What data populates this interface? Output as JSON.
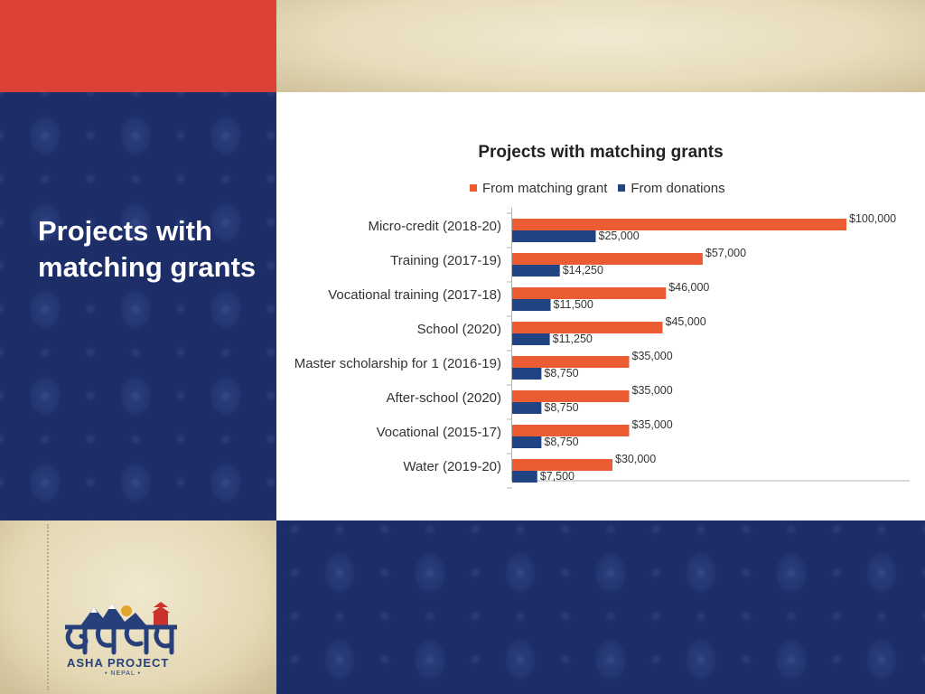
{
  "slide": {
    "title": "Projects with matching grants"
  },
  "logo": {
    "text": "ASHA PROJECT",
    "subtext": "• NEPAL •"
  },
  "colors": {
    "matching": "#ec5c33",
    "donations": "#1f4383",
    "red_block": "#dc4138",
    "navy": "#1c2d68"
  },
  "chart_data": {
    "type": "bar",
    "orientation": "horizontal",
    "title": "Projects with matching grants",
    "categories": [
      "Micro-credit (2018-20)",
      "Training (2017-19)",
      "Vocational training (2017-18)",
      "School (2020)",
      "Master scholarship for 1 (2016-19)",
      "After-school (2020)",
      "Vocational  (2015-17)",
      "Water (2019-20)"
    ],
    "series": [
      {
        "name": "From matching grant",
        "values": [
          100000,
          57000,
          46000,
          45000,
          35000,
          35000,
          35000,
          30000
        ],
        "labels": [
          "$100,000",
          "$57,000",
          "$46,000",
          "$45,000",
          "$35,000",
          "$35,000",
          "$35,000",
          "$30,000"
        ]
      },
      {
        "name": "From donations",
        "values": [
          25000,
          14250,
          11500,
          11250,
          8750,
          8750,
          8750,
          7500
        ],
        "labels": [
          "$25,000",
          "$14,250",
          "$11,500",
          "$11,250",
          "$8,750",
          "$8,750",
          "$8,750",
          "$7,500"
        ]
      }
    ],
    "xlim": [
      0,
      100000
    ],
    "legend_position": "top",
    "grid": false
  }
}
